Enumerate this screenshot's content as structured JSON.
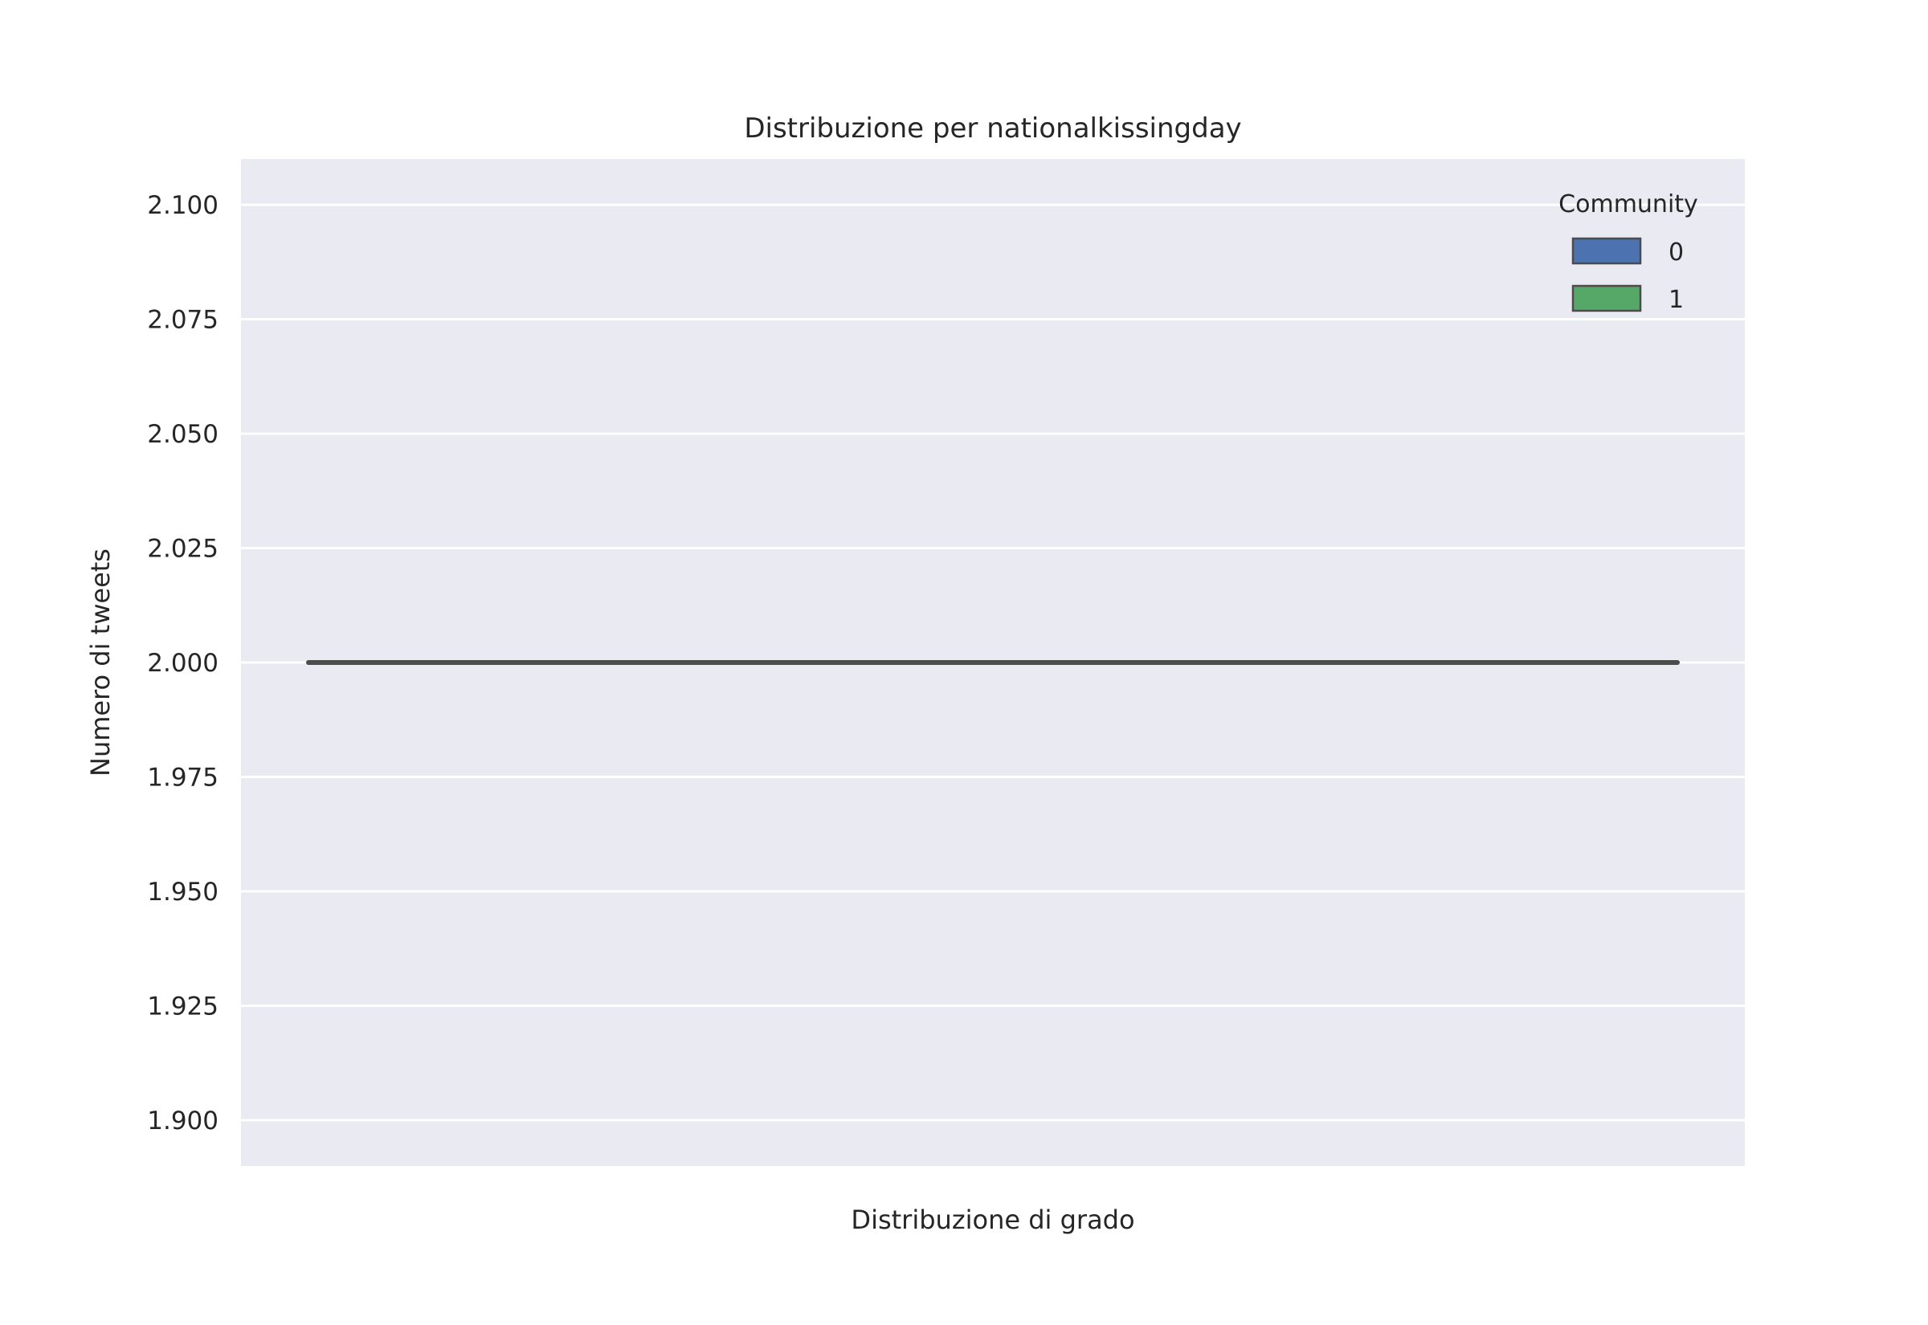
{
  "chart_data": {
    "type": "box",
    "title": "Distribuzione per nationalkissingday",
    "xlabel": "Distribuzione di grado",
    "ylabel": "Numero di tweets",
    "ylim": [
      1.89,
      2.11
    ],
    "yticks": [
      1.9,
      1.925,
      1.95,
      1.975,
      2.0,
      2.025,
      2.05,
      2.075,
      2.1
    ],
    "ytick_labels": [
      "1.900",
      "1.925",
      "1.950",
      "1.975",
      "2.000",
      "2.025",
      "2.050",
      "2.075",
      "2.100"
    ],
    "grid": true,
    "legend": {
      "title": "Community",
      "placement": "top-right",
      "entries": [
        {
          "label": "0",
          "color": "#4c72b0"
        },
        {
          "label": "1",
          "color": "#55a868"
        }
      ]
    },
    "series": [
      {
        "name": "0",
        "color": "#4c72b0",
        "min": 2.0,
        "q1": 2.0,
        "median": 2.0,
        "q3": 2.0,
        "max": 2.0
      },
      {
        "name": "1",
        "color": "#55a868",
        "min": 2.0,
        "q1": 2.0,
        "median": 2.0,
        "q3": 2.0,
        "max": 2.0
      }
    ],
    "colors": {
      "background": "#eaeaf2",
      "grid": "#ffffff",
      "line": "#4c4c4c",
      "text": "#262626"
    }
  }
}
